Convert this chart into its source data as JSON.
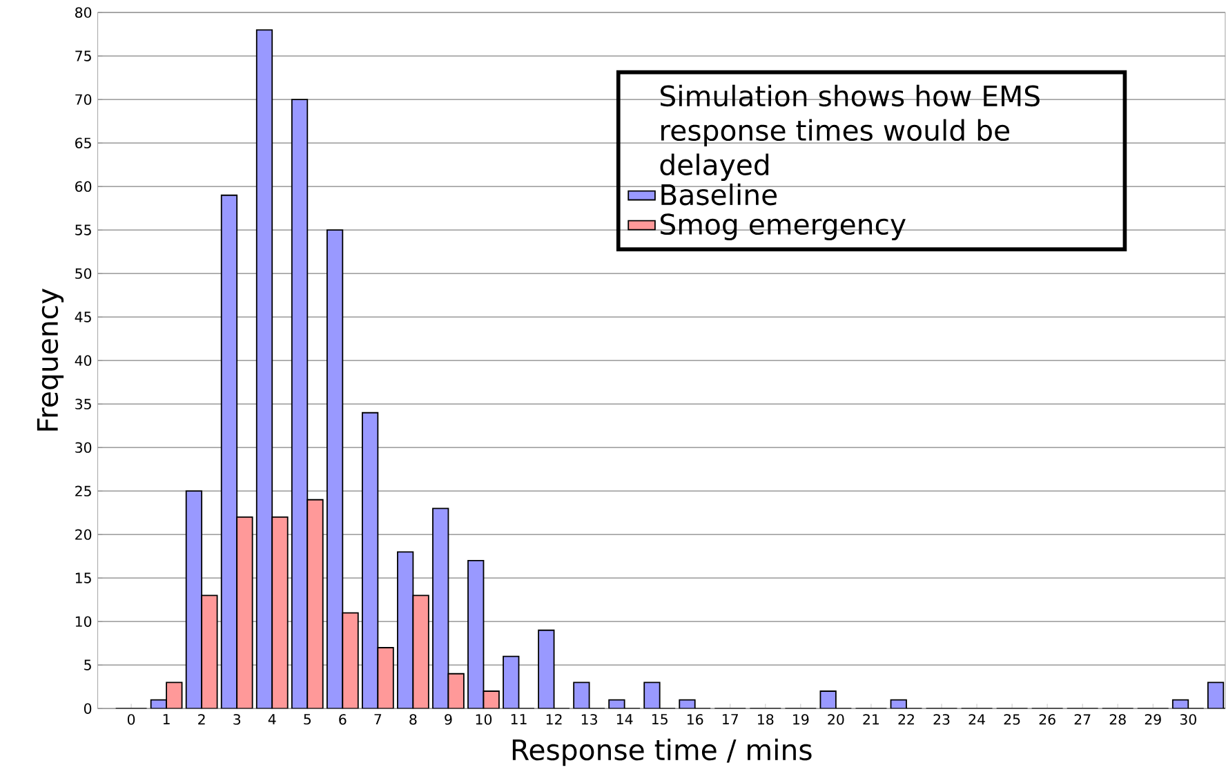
{
  "chart_data": {
    "type": "bar",
    "xlabel": "Response time / mins",
    "ylabel": "Frequency",
    "legend_title": "Simulation shows how EMS response times would be delayed",
    "categories": [
      "0",
      "1",
      "2",
      "3",
      "4",
      "5",
      "6",
      "7",
      "8",
      "9",
      "10",
      "11",
      "12",
      "13",
      "14",
      "15",
      "16",
      "17",
      "18",
      "19",
      "20",
      "21",
      "22",
      "23",
      "24",
      "25",
      "26",
      "27",
      "28",
      "29",
      "30",
      null
    ],
    "series": [
      {
        "name": "Baseline",
        "color": "#9999ff",
        "values": [
          0,
          1,
          25,
          59,
          78,
          70,
          55,
          34,
          18,
          23,
          17,
          6,
          9,
          3,
          1,
          3,
          1,
          0,
          0,
          0,
          2,
          0,
          1,
          0,
          0,
          0,
          0,
          0,
          0,
          0,
          1,
          3
        ]
      },
      {
        "name": "Smog emergency",
        "color": "#ff9999",
        "values": [
          0,
          3,
          13,
          22,
          22,
          24,
          11,
          7,
          13,
          4,
          2,
          0,
          0,
          0,
          0,
          0,
          0,
          0,
          0,
          0,
          0,
          0,
          0,
          0,
          0,
          0,
          0,
          0,
          0,
          0,
          0,
          0
        ]
      }
    ],
    "ylim": [
      0,
      80
    ],
    "yticks": [
      0,
      5,
      10,
      15,
      20,
      25,
      30,
      35,
      40,
      45,
      50,
      55,
      60,
      65,
      70,
      75,
      80
    ],
    "grid": "y",
    "legend": "top right"
  }
}
